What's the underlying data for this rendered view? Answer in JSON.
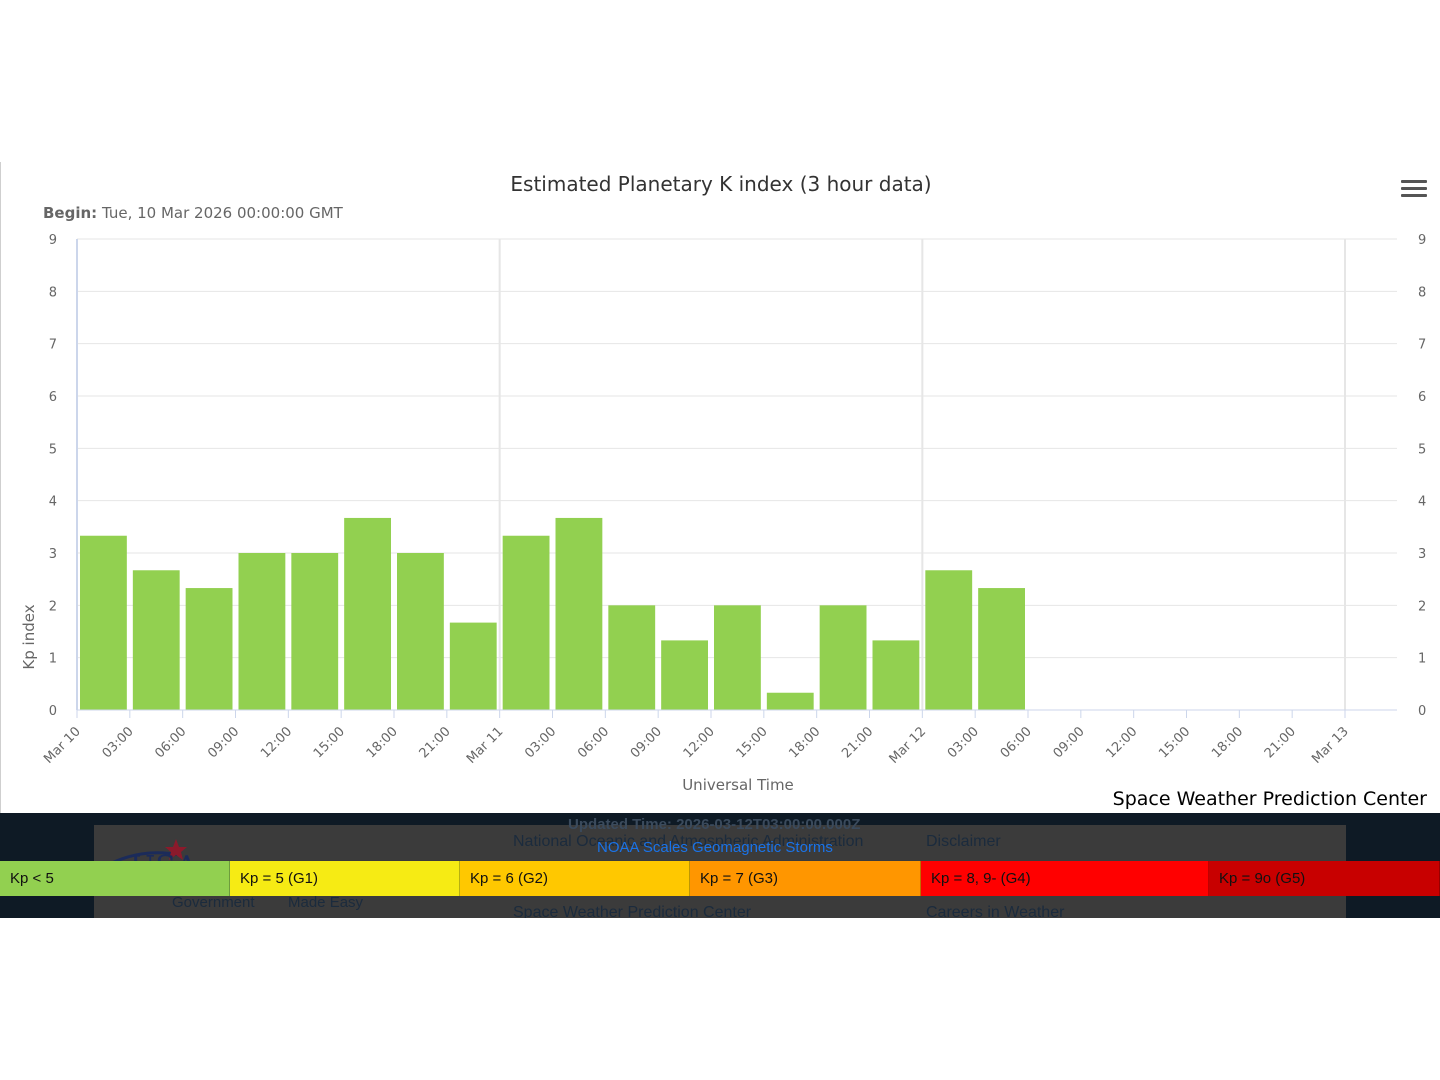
{
  "chart_data": {
    "type": "bar",
    "title": "Estimated Planetary K index (3 hour data)",
    "subtitle_label": "Begin:",
    "subtitle_value": "Tue, 10 Mar 2026 00:00:00 GMT",
    "ylabel": "Kp index",
    "xlabel": "Universal Time",
    "ylim": [
      0,
      9
    ],
    "y_ticks": [
      0,
      1,
      2,
      3,
      4,
      5,
      6,
      7,
      8,
      9
    ],
    "x_ticks": [
      "Mar 10",
      "03:00",
      "06:00",
      "09:00",
      "12:00",
      "15:00",
      "18:00",
      "21:00",
      "Mar 11",
      "03:00",
      "06:00",
      "09:00",
      "12:00",
      "15:00",
      "18:00",
      "21:00",
      "Mar 12",
      "03:00",
      "06:00",
      "09:00",
      "12:00",
      "15:00",
      "18:00",
      "21:00",
      "Mar 13"
    ],
    "x_range_hours": [
      0,
      72
    ],
    "bar_interval_hours": 3,
    "bar_color": "#92d050",
    "grid": true,
    "series": [
      {
        "values": [
          3.33,
          2.67,
          2.33,
          3.0,
          3.0,
          3.67,
          3.0,
          1.67,
          3.33,
          3.67,
          2.0,
          1.33,
          2.0,
          0.33,
          2.0,
          1.33,
          2.67,
          2.33
        ]
      }
    ]
  },
  "credit": "Space Weather Prediction Center",
  "legend": {
    "items": [
      {
        "label": "Kp < 5",
        "color": "#92d050"
      },
      {
        "label": "Kp = 5 (G1)",
        "color": "#f6eb14"
      },
      {
        "label": "Kp = 6 (G2)",
        "color": "#ffc800"
      },
      {
        "label": "Kp = 7 (G3)",
        "color": "#ff9600"
      },
      {
        "label": "Kp = 8, 9- (G4)",
        "color": "#ff0000"
      },
      {
        "label": "Kp = 9o (G5)",
        "color": "#c80000"
      }
    ]
  },
  "footer": {
    "updated": "Updated Time: 2026-03-12T03:00:00.000Z",
    "scales_link": "NOAA Scales Geomagnetic Storms",
    "col1_line1": "National Oceanic and Atmospheric Administration",
    "col1_line3": "Space Weather Prediction Center",
    "col2_line1": "Disclaimer",
    "col2_line3": "Careers in Weather",
    "usa_tagline_left": "Government",
    "usa_tagline_right": "Made Easy"
  }
}
